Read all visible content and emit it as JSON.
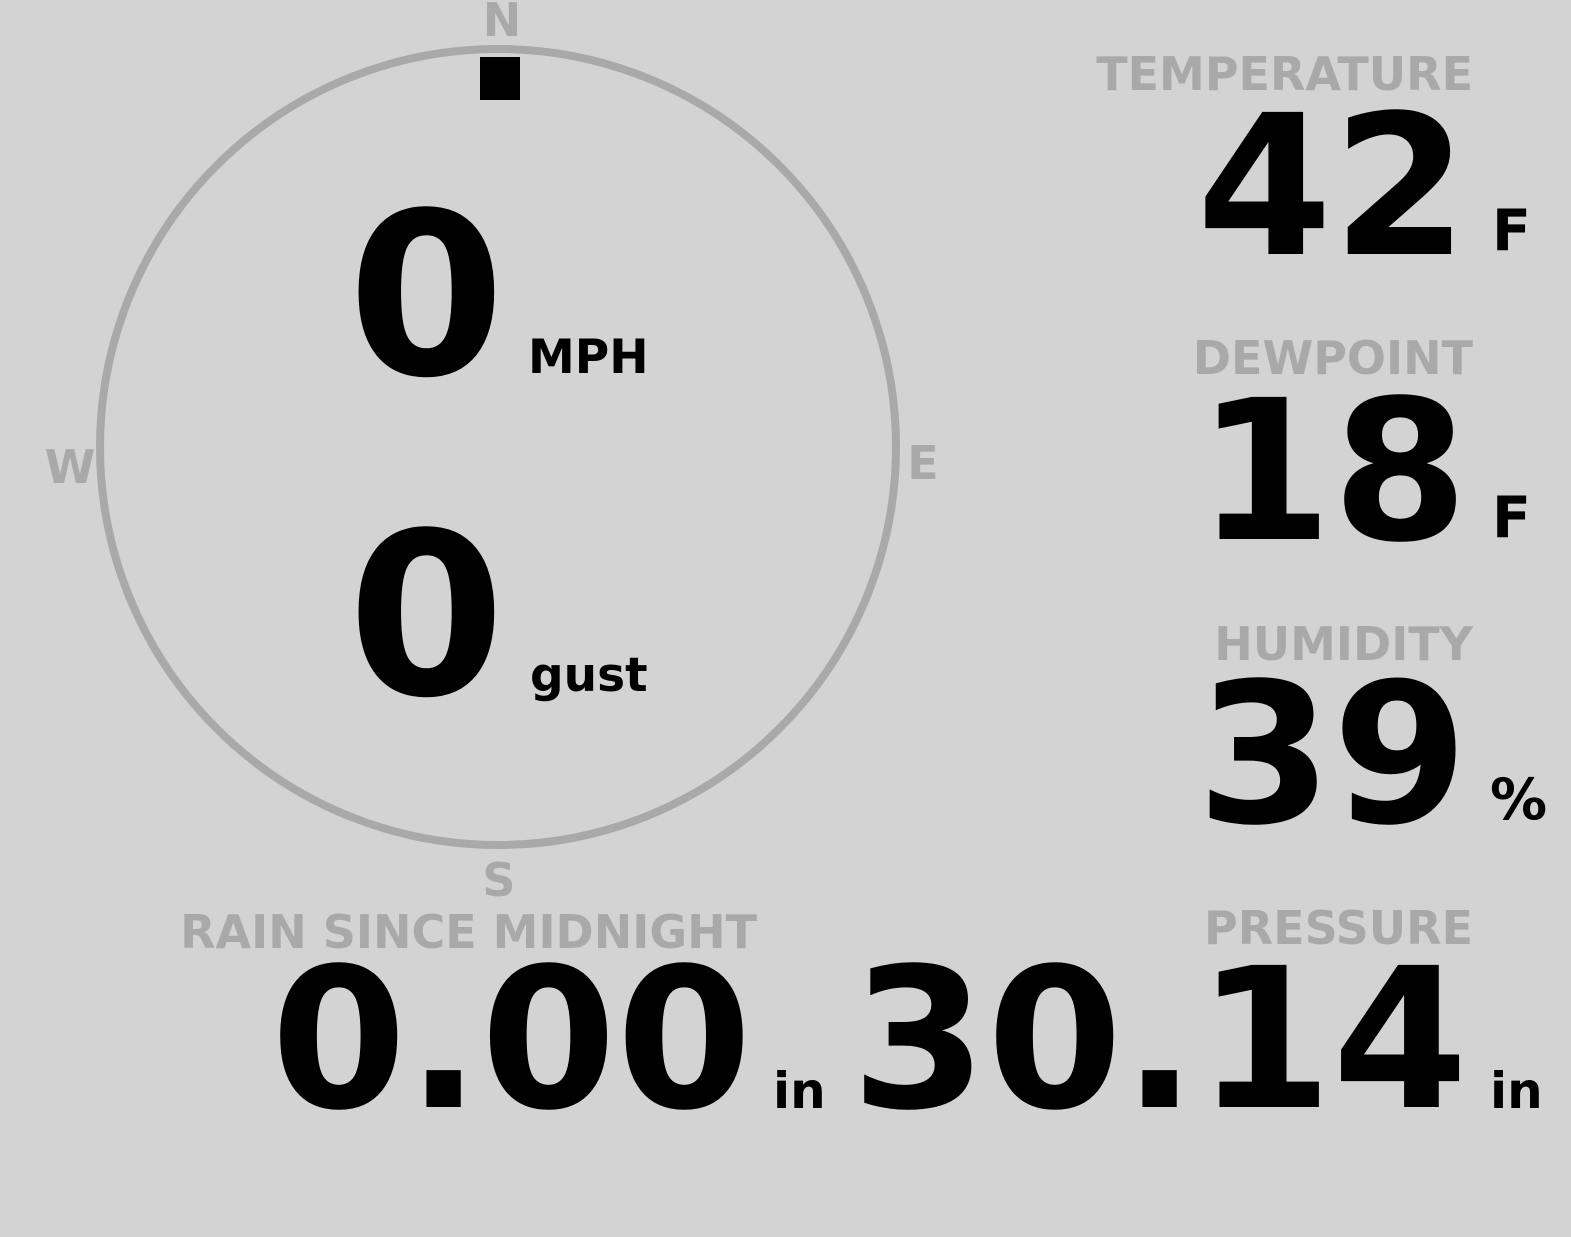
{
  "colors": {
    "background": "#d3d3d3",
    "label": "#a9a9a9",
    "value": "#000000",
    "dial": "#a9a9a9",
    "needle": "#000000"
  },
  "wind": {
    "direction_degrees": 0,
    "compass": {
      "n": "N",
      "e": "E",
      "s": "S",
      "w": "W"
    },
    "speed": "0",
    "speed_unit": "MPH",
    "gust": "0",
    "gust_unit": "gust"
  },
  "temperature": {
    "label": "TEMPERATURE",
    "value": "42",
    "unit": "F"
  },
  "dewpoint": {
    "label": "DEWPOINT",
    "value": "18",
    "unit": "F"
  },
  "humidity": {
    "label": "HUMIDITY",
    "value": "39",
    "unit": "%"
  },
  "rain": {
    "label": "RAIN SINCE MIDNIGHT",
    "value": "0.00",
    "unit": "in"
  },
  "pressure": {
    "label": "PRESSURE",
    "value": "30.14",
    "unit": "in"
  }
}
